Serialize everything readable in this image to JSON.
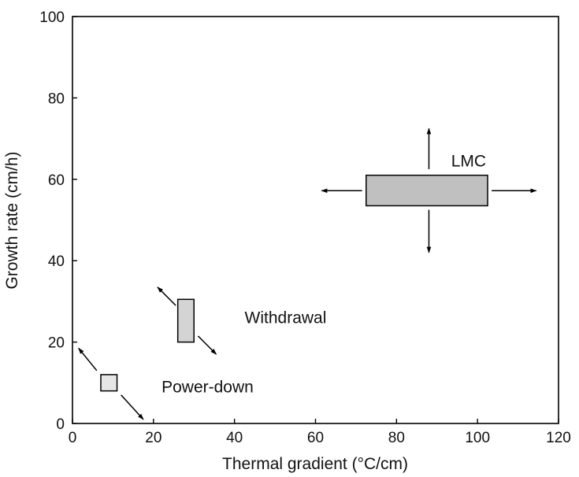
{
  "chart_data": {
    "type": "scatter",
    "title": "",
    "xlabel": "Thermal gradient (°C/cm)",
    "ylabel": "Growth rate (cm/h)",
    "xlim": [
      0,
      120
    ],
    "ylim": [
      0,
      100
    ],
    "xticks": [
      "0",
      "20",
      "40",
      "60",
      "80",
      "100",
      "120"
    ],
    "yticks": [
      "0",
      "20",
      "40",
      "60",
      "80",
      "100"
    ],
    "grid": false,
    "regions": [
      {
        "label": "Power-down",
        "x_range": [
          7,
          11
        ],
        "y_range": [
          8,
          12
        ],
        "fill": "#e6e6e6",
        "trend_arrows": [
          {
            "from": [
              6,
              13
            ],
            "to": [
              1.5,
              18.5
            ]
          },
          {
            "from": [
              12,
              7
            ],
            "to": [
              17.5,
              1
            ]
          }
        ]
      },
      {
        "label": "Withdrawal",
        "x_range": [
          26,
          30
        ],
        "y_range": [
          20,
          30.5
        ],
        "fill": "#d4d4d4",
        "trend_arrows": [
          {
            "from": [
              25.5,
              29
            ],
            "to": [
              21,
              33.5
            ]
          },
          {
            "from": [
              31,
              21.5
            ],
            "to": [
              35.5,
              17
            ]
          }
        ]
      },
      {
        "label": "LMC",
        "x_range": [
          72.5,
          102.5
        ],
        "y_range": [
          53.5,
          61
        ],
        "fill": "#c0c0c0",
        "trend_arrows": [
          {
            "from": [
              88,
              62.5
            ],
            "to": [
              88,
              72.5
            ]
          },
          {
            "from": [
              88,
              52.5
            ],
            "to": [
              88,
              42
            ]
          },
          {
            "from": [
              71.5,
              57.2
            ],
            "to": [
              61.5,
              57.2
            ]
          },
          {
            "from": [
              103.5,
              57.2
            ],
            "to": [
              114.5,
              57.2
            ]
          }
        ]
      }
    ]
  }
}
